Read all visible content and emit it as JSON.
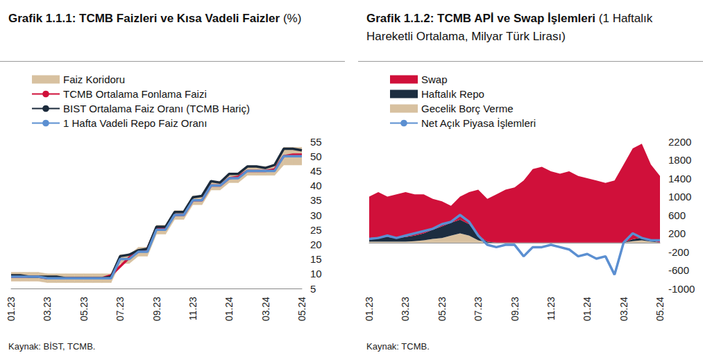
{
  "chart_data": [
    {
      "type": "line",
      "title": "Grafik 1.1.1: TCMB Faizleri ve Kısa Vadeli Faizler",
      "subtitle": "(%)",
      "note": "Kaynak: BİST, TCMB.",
      "categories": [
        "01.23",
        null,
        null,
        null,
        "03.23",
        null,
        null,
        null,
        "05.23",
        null,
        null,
        null,
        "07.23",
        null,
        null,
        null,
        "09.23",
        null,
        null,
        null,
        "11.23",
        null,
        null,
        null,
        "01.24",
        null,
        null,
        null,
        "03.24",
        null,
        null,
        null,
        "05.24"
      ],
      "series": [
        {
          "name": "Faiz Koridoru",
          "type": "band",
          "color": "#d8c1a0",
          "lower": [
            7.5,
            7.5,
            7.5,
            7.5,
            7,
            7,
            7,
            7,
            7,
            7,
            7,
            7,
            13.5,
            13.5,
            16,
            16,
            23.5,
            23.5,
            28.5,
            28.5,
            33.5,
            33.5,
            38.5,
            38.5,
            41,
            41,
            43.5,
            43.5,
            43.5,
            43.5,
            47,
            47,
            47
          ],
          "upper": [
            10.5,
            10.5,
            10.5,
            10.5,
            10,
            10,
            10,
            10,
            10,
            10,
            10,
            10,
            16.5,
            16.5,
            19,
            19,
            26.5,
            26.5,
            31.5,
            31.5,
            36.5,
            36.5,
            41.5,
            41.5,
            44,
            44,
            46.5,
            46.5,
            46.5,
            46.5,
            53,
            53,
            53
          ]
        },
        {
          "name": "TCMB Ortalama Fonlama Faizi",
          "type": "line",
          "color": "#d0103a",
          "values": [
            9,
            9,
            9,
            9,
            8.5,
            8.5,
            8.5,
            8.5,
            8.5,
            8.5,
            8.5,
            9.5,
            12.5,
            15.5,
            17.5,
            18.5,
            25.5,
            25.5,
            30,
            30,
            35,
            35,
            40,
            40,
            42.5,
            43,
            45,
            45,
            45,
            45.5,
            50,
            50.5,
            50.5
          ]
        },
        {
          "name": "BIST Ortalama Faiz Oranı (TCMB Hariç)",
          "type": "line",
          "color": "#1c2b3c",
          "values": [
            9.5,
            9.5,
            9,
            9,
            9,
            9,
            8.5,
            8.5,
            8.5,
            8.5,
            8.5,
            9,
            16,
            16.5,
            18,
            18.5,
            26,
            26,
            31,
            31,
            36,
            36.5,
            41.5,
            41,
            44,
            44,
            46.5,
            46.5,
            46,
            47,
            52.5,
            52.5,
            52
          ]
        },
        {
          "name": "1 Hafta Vadeli Repo Faiz Oranı",
          "type": "line",
          "color": "#5b8fd1",
          "values": [
            9,
            9,
            9,
            9,
            8.5,
            8.5,
            8.5,
            8.5,
            8.5,
            8.5,
            8.5,
            8.5,
            15,
            15,
            17.5,
            17.5,
            25,
            25,
            30,
            30,
            35,
            35,
            40,
            40,
            42.5,
            42.5,
            45,
            45,
            45,
            45,
            50,
            50,
            50
          ]
        }
      ],
      "ylim": [
        5,
        55
      ],
      "yticks": [
        5,
        10,
        15,
        20,
        25,
        30,
        35,
        40,
        45,
        50,
        55
      ],
      "grid": false,
      "legend": "top-left"
    },
    {
      "type": "line",
      "title": "Grafik 1.1.2: TCMB APİ ve Swap İşlemleri",
      "subtitle": "(1 Haftalık Hareketli Ortalama, Milyar Türk Lirası)",
      "note": "Kaynak: TCMB.",
      "categories": [
        "01.23",
        null,
        null,
        null,
        "03.23",
        null,
        null,
        null,
        "05.23",
        null,
        null,
        null,
        "07.23",
        null,
        null,
        null,
        "09.23",
        null,
        null,
        null,
        "11.23",
        null,
        null,
        null,
        "01.24",
        null,
        null,
        null,
        "03.24",
        null,
        null,
        null,
        "05.24"
      ],
      "series": [
        {
          "name": "Swap",
          "type": "area",
          "color": "#d0103a",
          "values": [
            900,
            980,
            880,
            950,
            980,
            900,
            850,
            670,
            550,
            370,
            500,
            700,
            1000,
            930,
            1050,
            1150,
            1200,
            1350,
            1600,
            1650,
            1550,
            1500,
            1550,
            1450,
            1400,
            1350,
            1300,
            1350,
            1700,
            1980,
            2040,
            1650,
            1450
          ]
        },
        {
          "name": "Haftalık Repo",
          "type": "area",
          "color": "#1c2d40",
          "values": [
            80,
            100,
            100,
            80,
            100,
            120,
            150,
            200,
            250,
            280,
            300,
            250,
            100,
            20,
            0,
            0,
            0,
            0,
            0,
            0,
            0,
            0,
            0,
            0,
            0,
            0,
            0,
            0,
            0,
            40,
            60,
            30,
            0
          ]
        },
        {
          "name": "Gecelik Borç Verme",
          "type": "area",
          "color": "#d8c1a0",
          "values": [
            20,
            20,
            20,
            20,
            20,
            30,
            50,
            80,
            100,
            150,
            200,
            150,
            50,
            0,
            0,
            0,
            0,
            0,
            0,
            0,
            0,
            0,
            0,
            0,
            0,
            0,
            0,
            0,
            0,
            30,
            50,
            20,
            0
          ]
        },
        {
          "name": "Net Açık Piyasa İşlemleri",
          "type": "line",
          "color": "#5b8fd1",
          "values": [
            80,
            100,
            150,
            100,
            150,
            200,
            250,
            300,
            400,
            450,
            600,
            450,
            150,
            -50,
            -100,
            -50,
            -50,
            -300,
            -100,
            -100,
            -50,
            -100,
            -150,
            -300,
            -250,
            -350,
            -300,
            -700,
            0,
            200,
            100,
            50,
            50
          ]
        }
      ],
      "ylim": [
        -1000,
        2200
      ],
      "yticks": [
        -1000,
        -600,
        -200,
        200,
        600,
        1000,
        1400,
        1800,
        2200
      ],
      "stacked": true,
      "grid": false,
      "legend": "top-left"
    }
  ]
}
